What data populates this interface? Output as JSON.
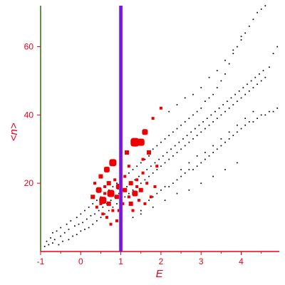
{
  "chart_data": {
    "type": "scatter",
    "title": "",
    "xlabel": "E",
    "ylabel": "<n>",
    "xlim": [
      -1,
      4.95
    ],
    "ylim": [
      0,
      72
    ],
    "xticks": [
      -1,
      0,
      1,
      2,
      3,
      4
    ],
    "yticks": [
      20,
      40,
      60
    ],
    "grid": false,
    "reference_line": {
      "x": 1.0,
      "color": "#9a1ee6"
    },
    "colors": {
      "axis": "#e8001c",
      "left_axis": "#2e6b16",
      "black_series": "#000000",
      "red_series": "#ee0000"
    },
    "series": [
      {
        "color": "#000000",
        "points": [
          [
            -0.9,
            1.5
          ],
          [
            -0.85,
            3
          ],
          [
            -0.8,
            2
          ],
          [
            -0.75,
            4
          ],
          [
            -0.7,
            2.5
          ],
          [
            -0.7,
            5.5
          ],
          [
            -0.65,
            3.5
          ],
          [
            -0.6,
            6
          ],
          [
            -0.55,
            2
          ],
          [
            -0.5,
            4.5
          ],
          [
            -0.5,
            7
          ],
          [
            -0.45,
            3
          ],
          [
            -0.4,
            5.5
          ],
          [
            -0.35,
            8
          ],
          [
            -0.3,
            3.5
          ],
          [
            -0.3,
            6.5
          ],
          [
            -0.25,
            9
          ],
          [
            -0.2,
            4.5
          ],
          [
            -0.15,
            7.5
          ],
          [
            -0.1,
            5
          ],
          [
            -0.1,
            10
          ],
          [
            -0.05,
            8
          ],
          [
            0.0,
            6
          ],
          [
            0.0,
            11
          ],
          [
            0.05,
            8.5
          ],
          [
            0.1,
            12
          ],
          [
            0.1,
            6.5
          ],
          [
            0.15,
            9.5
          ],
          [
            0.2,
            7
          ],
          [
            0.2,
            13
          ],
          [
            0.25,
            10.5
          ],
          [
            0.3,
            8
          ],
          [
            0.3,
            14
          ],
          [
            0.35,
            11
          ],
          [
            0.4,
            15
          ],
          [
            0.4,
            9
          ],
          [
            0.45,
            12
          ],
          [
            0.5,
            16
          ],
          [
            0.5,
            10
          ],
          [
            0.55,
            13
          ],
          [
            0.6,
            11
          ],
          [
            0.6,
            17
          ],
          [
            0.65,
            14
          ],
          [
            0.7,
            12
          ],
          [
            0.7,
            18
          ],
          [
            0.75,
            15
          ],
          [
            0.8,
            13
          ],
          [
            0.8,
            19
          ],
          [
            0.85,
            16
          ],
          [
            0.9,
            14
          ],
          [
            0.9,
            20
          ],
          [
            0.95,
            17
          ],
          [
            1.0,
            15
          ],
          [
            1.0,
            21
          ],
          [
            1.05,
            18
          ],
          [
            1.1,
            16
          ],
          [
            1.1,
            22
          ],
          [
            1.15,
            19
          ],
          [
            1.2,
            17
          ],
          [
            1.2,
            23
          ],
          [
            1.25,
            20
          ],
          [
            1.3,
            18
          ],
          [
            1.3,
            24
          ],
          [
            1.35,
            21
          ],
          [
            1.4,
            19
          ],
          [
            1.4,
            25
          ],
          [
            1.45,
            22
          ],
          [
            1.5,
            20
          ],
          [
            1.5,
            26
          ],
          [
            1.55,
            23
          ],
          [
            1.6,
            21
          ],
          [
            1.6,
            27
          ],
          [
            1.65,
            24
          ],
          [
            1.7,
            22
          ],
          [
            1.7,
            28
          ],
          [
            1.75,
            25
          ],
          [
            1.8,
            23
          ],
          [
            1.8,
            30
          ],
          [
            1.85,
            26
          ],
          [
            1.9,
            24
          ],
          [
            1.9,
            31
          ],
          [
            1.95,
            27
          ],
          [
            2.0,
            25
          ],
          [
            2.0,
            32
          ],
          [
            2.05,
            28
          ],
          [
            2.1,
            26
          ],
          [
            2.1,
            33
          ],
          [
            2.15,
            29
          ],
          [
            2.2,
            27
          ],
          [
            2.2,
            34
          ],
          [
            2.25,
            30
          ],
          [
            2.3,
            28
          ],
          [
            2.3,
            35
          ],
          [
            2.35,
            31
          ],
          [
            2.4,
            29
          ],
          [
            2.4,
            36
          ],
          [
            2.45,
            32
          ],
          [
            2.5,
            30
          ],
          [
            2.5,
            37
          ],
          [
            2.55,
            33
          ],
          [
            2.6,
            31
          ],
          [
            2.6,
            38
          ],
          [
            2.65,
            34
          ],
          [
            2.7,
            32
          ],
          [
            2.7,
            39
          ],
          [
            2.75,
            35
          ],
          [
            2.8,
            33
          ],
          [
            2.8,
            40
          ],
          [
            2.85,
            36
          ],
          [
            2.9,
            34
          ],
          [
            2.9,
            41
          ],
          [
            2.95,
            37
          ],
          [
            3.0,
            35
          ],
          [
            3.0,
            42
          ],
          [
            3.05,
            38
          ],
          [
            3.1,
            36
          ],
          [
            3.1,
            44
          ],
          [
            3.15,
            39
          ],
          [
            3.2,
            37
          ],
          [
            3.2,
            45
          ],
          [
            3.25,
            40
          ],
          [
            3.3,
            38
          ],
          [
            3.3,
            46
          ],
          [
            3.35,
            41
          ],
          [
            3.4,
            39
          ],
          [
            3.4,
            48
          ],
          [
            3.45,
            42
          ],
          [
            3.5,
            40
          ],
          [
            3.5,
            50
          ],
          [
            3.55,
            43
          ],
          [
            3.6,
            41
          ],
          [
            3.6,
            52
          ],
          [
            3.65,
            44
          ],
          [
            3.7,
            42
          ],
          [
            3.7,
            55
          ],
          [
            3.75,
            45
          ],
          [
            3.8,
            43
          ],
          [
            3.8,
            58
          ],
          [
            3.85,
            46
          ],
          [
            3.9,
            44
          ],
          [
            3.9,
            60
          ],
          [
            3.95,
            47
          ],
          [
            4.0,
            45
          ],
          [
            4.0,
            62
          ],
          [
            4.05,
            48
          ],
          [
            4.1,
            46
          ],
          [
            4.1,
            64
          ],
          [
            4.15,
            49
          ],
          [
            4.2,
            47
          ],
          [
            4.2,
            66
          ],
          [
            4.25,
            50
          ],
          [
            4.3,
            48
          ],
          [
            4.3,
            68
          ],
          [
            4.35,
            51
          ],
          [
            4.4,
            49
          ],
          [
            4.4,
            70
          ],
          [
            4.45,
            52
          ],
          [
            4.5,
            50
          ],
          [
            4.5,
            71
          ],
          [
            4.55,
            53
          ],
          [
            4.6,
            51
          ],
          [
            4.6,
            72
          ],
          [
            4.7,
            54
          ],
          [
            4.8,
            58
          ],
          [
            4.9,
            60
          ],
          [
            1.5,
            12
          ],
          [
            1.6,
            14
          ],
          [
            1.7,
            15
          ],
          [
            1.8,
            16
          ],
          [
            1.9,
            17
          ],
          [
            2.0,
            18
          ],
          [
            2.1,
            19
          ],
          [
            2.2,
            19
          ],
          [
            2.3,
            20
          ],
          [
            2.4,
            21
          ],
          [
            2.5,
            22
          ],
          [
            2.6,
            23
          ],
          [
            2.7,
            24
          ],
          [
            2.8,
            24
          ],
          [
            2.9,
            25
          ],
          [
            3.0,
            26
          ],
          [
            3.1,
            27
          ],
          [
            3.2,
            28
          ],
          [
            3.3,
            29
          ],
          [
            3.4,
            30
          ],
          [
            3.5,
            31
          ],
          [
            3.6,
            32
          ],
          [
            3.7,
            33
          ],
          [
            3.8,
            34
          ],
          [
            3.9,
            35
          ],
          [
            4.0,
            36
          ],
          [
            4.1,
            37
          ],
          [
            4.2,
            38
          ],
          [
            4.3,
            38
          ],
          [
            4.4,
            39
          ],
          [
            4.5,
            40
          ],
          [
            4.6,
            40
          ],
          [
            4.7,
            41
          ],
          [
            4.8,
            41
          ],
          [
            4.9,
            42
          ],
          [
            1.3,
            10
          ],
          [
            1.5,
            11
          ],
          [
            1.8,
            13
          ],
          [
            2.1,
            15
          ],
          [
            2.4,
            17
          ],
          [
            2.7,
            18
          ],
          [
            3.0,
            20
          ],
          [
            3.3,
            22
          ],
          [
            3.6,
            24
          ],
          [
            3.9,
            26
          ],
          [
            2.2,
            41
          ],
          [
            2.4,
            43
          ],
          [
            2.6,
            45
          ],
          [
            2.8,
            46
          ],
          [
            3.0,
            48
          ],
          [
            3.2,
            51
          ],
          [
            3.4,
            53
          ],
          [
            3.6,
            56
          ],
          [
            3.8,
            59
          ],
          [
            4.0,
            63
          ],
          [
            2.5,
            24
          ],
          [
            2.7,
            26
          ],
          [
            2.9,
            28
          ],
          [
            3.1,
            29
          ],
          [
            3.3,
            31
          ],
          [
            3.5,
            33
          ],
          [
            3.7,
            35
          ],
          [
            3.9,
            37
          ],
          [
            4.1,
            39
          ],
          [
            4.3,
            41
          ]
        ]
      },
      {
        "color": "#ee0000",
        "points": [
          [
            0.3,
            16,
            3
          ],
          [
            0.35,
            20,
            2
          ],
          [
            0.4,
            13,
            2
          ],
          [
            0.45,
            18,
            4
          ],
          [
            0.5,
            22,
            3
          ],
          [
            0.55,
            11,
            2
          ],
          [
            0.55,
            15,
            5
          ],
          [
            0.6,
            19,
            2
          ],
          [
            0.65,
            24,
            4
          ],
          [
            0.7,
            14,
            3
          ],
          [
            0.75,
            17,
            5
          ],
          [
            0.8,
            26,
            5
          ],
          [
            0.8,
            12,
            2
          ],
          [
            0.85,
            21,
            2
          ],
          [
            0.9,
            9,
            2
          ],
          [
            0.9,
            16,
            3
          ],
          [
            0.95,
            19,
            4
          ],
          [
            1.05,
            14,
            2
          ],
          [
            1.1,
            18,
            3
          ],
          [
            1.1,
            22,
            2
          ],
          [
            1.15,
            29,
            3
          ],
          [
            1.2,
            16,
            2
          ],
          [
            1.25,
            20,
            3
          ],
          [
            1.3,
            12,
            2
          ],
          [
            1.35,
            17,
            4
          ],
          [
            1.35,
            32,
            6
          ],
          [
            1.4,
            21,
            2
          ],
          [
            1.45,
            15,
            2
          ],
          [
            1.5,
            32,
            5
          ],
          [
            1.5,
            18,
            3
          ],
          [
            1.55,
            27,
            2
          ],
          [
            1.6,
            35,
            4
          ],
          [
            1.6,
            14,
            2
          ],
          [
            1.65,
            20,
            2
          ],
          [
            1.7,
            29,
            3
          ],
          [
            1.75,
            16,
            2
          ],
          [
            1.8,
            39,
            2
          ],
          [
            1.85,
            19,
            2
          ],
          [
            1.9,
            25,
            2
          ],
          [
            2.0,
            42,
            2
          ],
          [
            0.6,
            17,
            2
          ],
          [
            0.7,
            20,
            3
          ],
          [
            0.5,
            14,
            2
          ],
          [
            0.65,
            10,
            2
          ],
          [
            0.75,
            8,
            2
          ],
          [
            1.2,
            25,
            2
          ],
          [
            1.25,
            14,
            3
          ],
          [
            0.95,
            12,
            2
          ],
          [
            1.4,
            19,
            2
          ],
          [
            1.55,
            23,
            2
          ]
        ]
      }
    ]
  }
}
